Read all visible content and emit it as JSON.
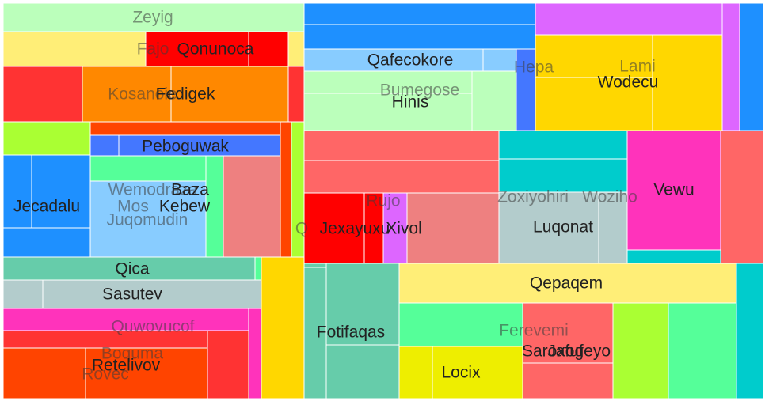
{
  "chart_data": {
    "type": "treemap",
    "title": "",
    "colors": {
      "red": "#ff3333",
      "bright_red": "#ff0000",
      "orange": "#ff8800",
      "red_orange": "#ff4400",
      "yellow": "#ffee77",
      "gold": "#ffd700",
      "lime": "#aaff33",
      "mint": "#55ff99",
      "pale_green": "#bbffbb",
      "teal": "#66ccaa",
      "cyan": "#00cccc",
      "blue": "#1e90ff",
      "royal_blue": "#4477ff",
      "light_blue": "#88ccff",
      "gray": "#b3cccc",
      "salmon": "#ff6666",
      "light_coral": "#ee8080",
      "pink": "#ff33bb",
      "violet": "#dd66ff",
      "yellow_green": "#eeee00"
    },
    "labels": [
      {
        "id": "zeyig",
        "text": "Zeyig",
        "tone": "faded"
      },
      {
        "id": "fajo",
        "text": "Fajo",
        "tone": "faded"
      },
      {
        "id": "qonunoca",
        "text": "Qonunoca",
        "tone": "dark"
      },
      {
        "id": "kosanoie",
        "text": "Kosanoie",
        "tone": "faded"
      },
      {
        "id": "fedigek",
        "text": "Fedigek",
        "tone": "dark"
      },
      {
        "id": "peboguwak",
        "text": "Peboguwak",
        "tone": "dark"
      },
      {
        "id": "jecadalu",
        "text": "Jecadalu",
        "tone": "dark"
      },
      {
        "id": "wemodraza",
        "text": "Wemodraza",
        "tone": "faded"
      },
      {
        "id": "baza",
        "text": "Baza",
        "tone": "dark"
      },
      {
        "id": "mos",
        "text": "Mos",
        "tone": "faded"
      },
      {
        "id": "kebew",
        "text": "Kebew",
        "tone": "dark"
      },
      {
        "id": "juqomudin",
        "text": "Juqomudin",
        "tone": "faded"
      },
      {
        "id": "q",
        "text": "Q",
        "tone": "faded"
      },
      {
        "id": "qica",
        "text": "Qica",
        "tone": "dark"
      },
      {
        "id": "sasutev",
        "text": "Sasutev",
        "tone": "dark"
      },
      {
        "id": "quwovucof",
        "text": "Quwovucof",
        "tone": "faded"
      },
      {
        "id": "boquma",
        "text": "Boquma",
        "tone": "faded"
      },
      {
        "id": "retelivov",
        "text": "Retelivov",
        "tone": "dark"
      },
      {
        "id": "rovec",
        "text": "Rovec",
        "tone": "faded"
      },
      {
        "id": "qafecokore",
        "text": "Qafecokore",
        "tone": "dark"
      },
      {
        "id": "hepa",
        "text": "Hepa",
        "tone": "faded"
      },
      {
        "id": "lami",
        "text": "Lami",
        "tone": "faded"
      },
      {
        "id": "wodecu",
        "text": "Wodecu",
        "tone": "dark"
      },
      {
        "id": "bumegose",
        "text": "Bumegose",
        "tone": "faded"
      },
      {
        "id": "hinis",
        "text": "Hinis",
        "tone": "dark"
      },
      {
        "id": "vewu",
        "text": "Vewu",
        "tone": "dark"
      },
      {
        "id": "zoxiyohiri",
        "text": "Zoxiyohiri",
        "tone": "faded"
      },
      {
        "id": "woziho",
        "text": "Woziho",
        "tone": "faded"
      },
      {
        "id": "rujo",
        "text": "Rujo",
        "tone": "faded"
      },
      {
        "id": "jexayuxu",
        "text": "Jexayuxu",
        "tone": "dark"
      },
      {
        "id": "xivol",
        "text": "Xivol",
        "tone": "dark"
      },
      {
        "id": "luqonat",
        "text": "Luqonat",
        "tone": "dark"
      },
      {
        "id": "qepaqem",
        "text": "Qepaqem",
        "tone": "dark"
      },
      {
        "id": "fotifaqas",
        "text": "Fotifaqas",
        "tone": "dark"
      },
      {
        "id": "ferevemi",
        "text": "Ferevemi",
        "tone": "faded"
      },
      {
        "id": "saroxogeyo",
        "text": "Saroxogeyo",
        "tone": "dark"
      },
      {
        "id": "jafuf",
        "text": "Jafuf",
        "tone": "dark"
      },
      {
        "id": "locix",
        "text": "Locix",
        "tone": "dark"
      }
    ]
  }
}
